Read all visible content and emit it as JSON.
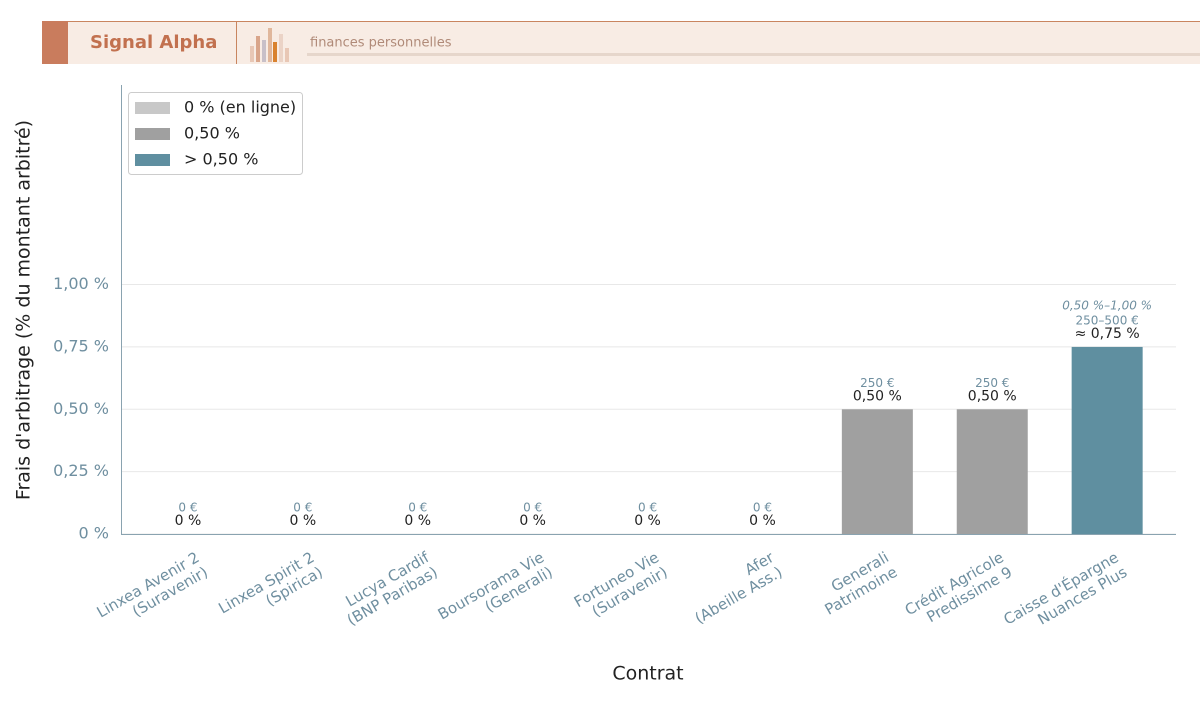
{
  "header": {
    "brand": "Signal Alpha",
    "tagline": "finances personnelles"
  },
  "chart_data": {
    "type": "bar",
    "ylabel": "Frais d'arbitrage (% du montant arbitré)",
    "xlabel": "Contrat",
    "categories": [
      "Linxea Avenir 2\n(Suravenir)",
      "Linxea Spirit 2\n(Spirica)",
      "Lucya Cardif\n(BNP Paribas)",
      "Boursorama Vie\n(Generali)",
      "Fortuneo Vie\n(Suravenir)",
      "Afer\n(Abeille Ass.)",
      "Generali\nPatrimoine",
      "Crédit Agricole\nPredissime 9",
      "Caisse d'Épargne\nNuances Plus"
    ],
    "values": [
      0,
      0,
      0,
      0,
      0,
      0,
      0.5,
      0.5,
      0.75
    ],
    "value_labels": [
      "0 %",
      "0 %",
      "0 %",
      "0 %",
      "0 %",
      "0 %",
      "0,50 %",
      "0,50 %",
      "≈ 0,75 %"
    ],
    "amount_labels": [
      "0 €",
      "0 €",
      "0 €",
      "0 €",
      "0 €",
      "0 €",
      "250 €",
      "250 €",
      "250–500 €"
    ],
    "range_labels": [
      null,
      null,
      null,
      null,
      null,
      null,
      null,
      null,
      "0,50 %–1,00 %"
    ],
    "colors": [
      "#c8c8c8",
      "#c8c8c8",
      "#c8c8c8",
      "#c8c8c8",
      "#c8c8c8",
      "#c8c8c8",
      "#a0a0a0",
      "#a0a0a0",
      "#5f8fa0"
    ],
    "legend": [
      {
        "name": "0 % (en ligne)",
        "color": "#c8c8c8"
      },
      {
        "name": "0,50 %",
        "color": "#a0a0a0"
      },
      {
        "name": "> 0,50 %",
        "color": "#5f8fa0"
      }
    ],
    "legend_position": "upper left",
    "ylim": [
      0,
      1.8
    ],
    "yticks": [
      {
        "value": 0,
        "label": "0 %"
      },
      {
        "value": 0.25,
        "label": "0,25 %"
      },
      {
        "value": 0.5,
        "label": "0,50 %"
      },
      {
        "value": 0.75,
        "label": "0,75 %"
      },
      {
        "value": 1,
        "label": "1,00 %"
      }
    ],
    "grid": true
  }
}
